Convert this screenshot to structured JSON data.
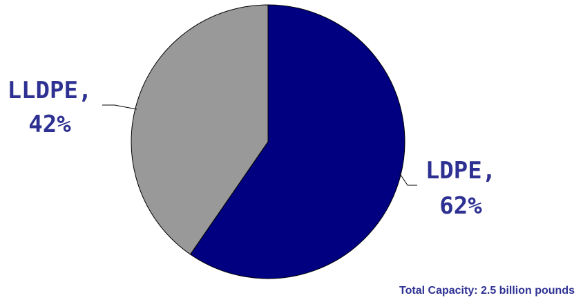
{
  "chart_data": {
    "type": "pie",
    "title": "",
    "slices": [
      {
        "name": "LDPE",
        "value": 62,
        "label": "LDPE,",
        "value_label": "62%",
        "color": "#000080"
      },
      {
        "name": "LLDPE",
        "value": 42,
        "label": "LLDPE,",
        "value_label": "42%",
        "color": "#999999"
      }
    ],
    "start_angle_deg": 0,
    "direction": "clockwise",
    "slice_border_color": "#000000",
    "legend": "none",
    "footnote": "Total Capacity: 2.5 billion pounds"
  }
}
